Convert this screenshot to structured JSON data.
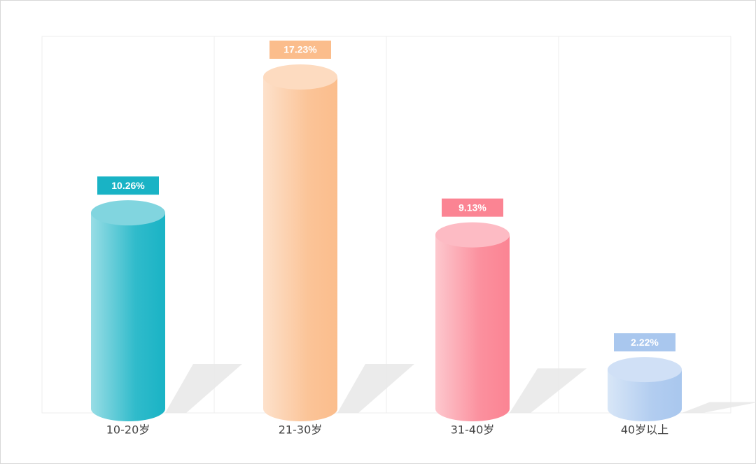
{
  "chart_data": {
    "type": "bar",
    "categories": [
      "10-20岁",
      "21-30岁",
      "31-40岁",
      "40岁以上"
    ],
    "values": [
      10.26,
      17.23,
      9.13,
      2.22
    ],
    "value_labels": [
      "10.26%",
      "17.23%",
      "9.13%",
      "2.22%"
    ],
    "colors": [
      "#19b3c5",
      "#fbbd8c",
      "#fb8493",
      "#a9c7ee"
    ],
    "grid": true
  }
}
